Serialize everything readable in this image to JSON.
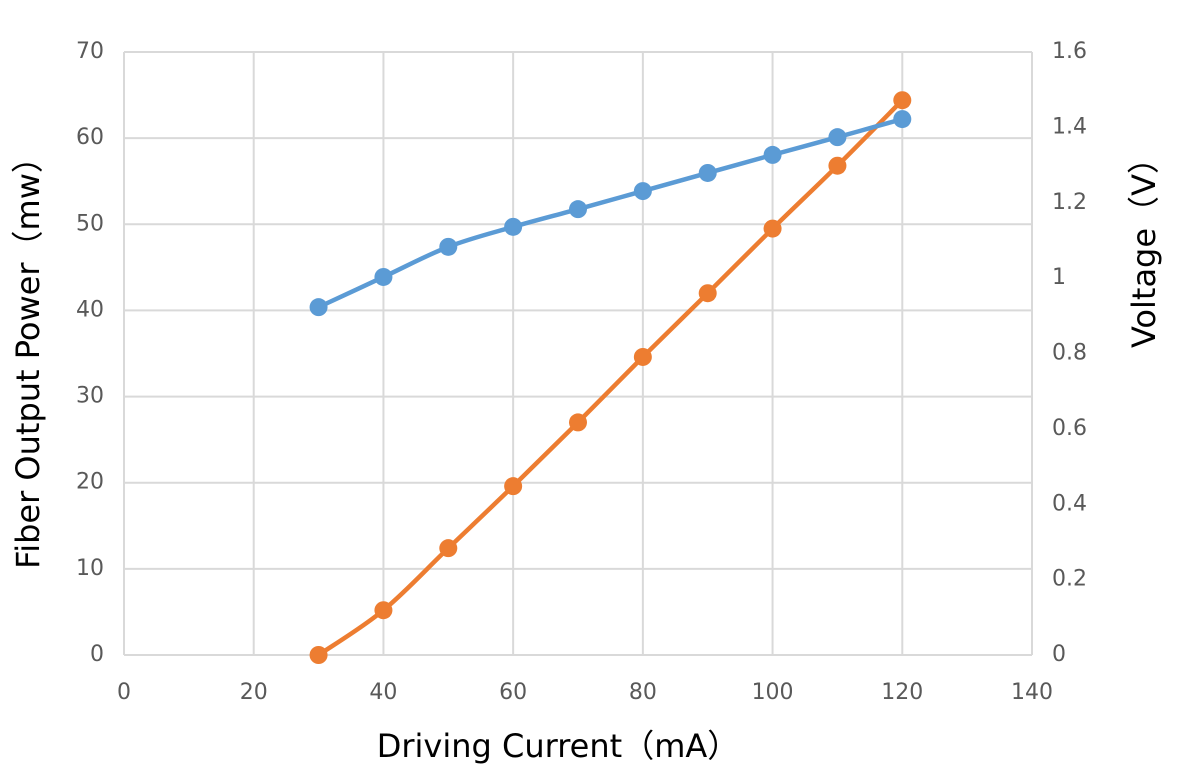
{
  "chart_data": {
    "type": "line",
    "x_label": "Driving Current（mA）",
    "y_label": "Fiber Output Power（mw）",
    "y2_label": "Voltage（V）",
    "x": [
      30,
      40,
      50,
      60,
      70,
      80,
      90,
      100,
      110,
      120
    ],
    "series": [
      {
        "color": "#ed7d31",
        "values": [
          0,
          5.2,
          12.4,
          19.6,
          27.0,
          34.6,
          42.0,
          49.5,
          56.8,
          64.4
        ]
      },
      {
        "color": "#5b9bd5",
        "axis": "y2",
        "values": [
          0.923,
          1.003,
          1.083,
          1.136,
          1.183,
          1.231,
          1.279,
          1.327,
          1.374,
          1.422
        ]
      }
    ],
    "xlim": [
      0,
      140
    ],
    "xticks": [
      0,
      20,
      40,
      60,
      80,
      100,
      120,
      140
    ],
    "ylim": [
      0,
      70
    ],
    "yticks": [
      0,
      10,
      20,
      30,
      40,
      50,
      60,
      70
    ],
    "y2lim": [
      0,
      1.6
    ],
    "y2ticks": [
      0,
      0.2,
      0.4,
      0.6,
      0.8,
      1,
      1.2,
      1.4,
      1.6
    ],
    "grid": true,
    "smooth": true
  }
}
